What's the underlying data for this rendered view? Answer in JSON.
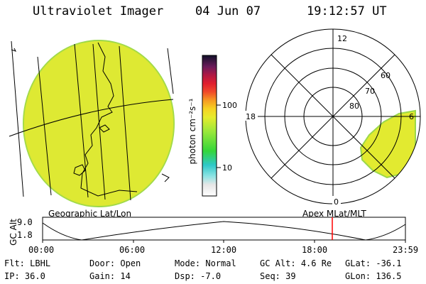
{
  "header": {
    "instrument": "Ultraviolet Imager",
    "date": "04 Jun 07",
    "time": "19:12:57 UT"
  },
  "colorbar": {
    "unit_label": "photon cm⁻²s⁻¹",
    "ticks": [
      "100",
      "10"
    ]
  },
  "polar": {
    "mlt_labels": [
      "12",
      "18",
      "6",
      "0"
    ],
    "lat_labels": [
      "60",
      "70",
      "80"
    ]
  },
  "map_labels": {
    "left": "Geographic Lat/Lon",
    "right": "Apex MLat/MLT"
  },
  "altitude_plot": {
    "ylabel": "GC Alt",
    "yticks": [
      "9.0",
      "1.8"
    ],
    "xticks": [
      "00:00",
      "06:00",
      "12:00",
      "18:00",
      "23:59"
    ],
    "current_marker_color": "#ff0000"
  },
  "status": {
    "row1": [
      {
        "label": "Flt:",
        "value": "LBHL"
      },
      {
        "label": "Door:",
        "value": "Open"
      },
      {
        "label": "Mode:",
        "value": "Normal"
      },
      {
        "label": "GC Alt:",
        "value": "4.6 Re"
      },
      {
        "label": "GLat:",
        "value": "-36.1"
      }
    ],
    "row2": [
      {
        "label": "IP:",
        "value": "36.0"
      },
      {
        "label": "Gain:",
        "value": "14"
      },
      {
        "label": "Dsp:",
        "value": "-7.0"
      },
      {
        "label": "Seq:",
        "value": "39"
      },
      {
        "label": "GLon:",
        "value": "136.5"
      }
    ]
  },
  "colors": {
    "image_fill": "#e6ec2c",
    "image_fill_alt": "#c8e63a"
  }
}
